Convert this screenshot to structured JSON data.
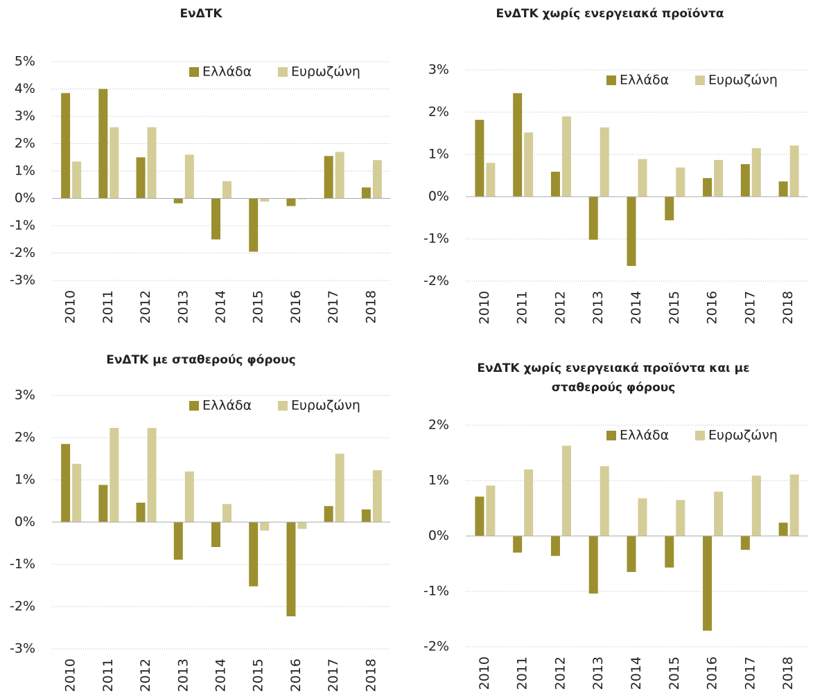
{
  "chart_data": [
    {
      "type": "bar",
      "title": "ΕνΔΤΚ",
      "categories": [
        "2010",
        "2011",
        "2012",
        "2013",
        "2014",
        "2015",
        "2016",
        "2017",
        "2018"
      ],
      "series": [
        {
          "name": "Ελλάδα",
          "color": "#9c8f2f",
          "values": [
            3.85,
            4.0,
            1.5,
            -0.18,
            -1.5,
            -1.95,
            -0.28,
            1.55,
            0.4
          ]
        },
        {
          "name": "Ευρωζώνη",
          "color": "#d5cd98",
          "values": [
            1.35,
            2.6,
            2.6,
            1.6,
            0.63,
            -0.12,
            -0.03,
            1.7,
            1.4
          ]
        }
      ],
      "ylim": [
        -3,
        5
      ],
      "yticks": [
        {
          "value": -3,
          "label": "-3%"
        },
        {
          "value": -2,
          "label": "-2%"
        },
        {
          "value": -1,
          "label": "-1%"
        },
        {
          "value": 0,
          "label": "0%"
        },
        {
          "value": 1,
          "label": "1%"
        },
        {
          "value": 2,
          "label": "2%"
        },
        {
          "value": 3,
          "label": "3%"
        },
        {
          "value": 4,
          "label": "4%"
        },
        {
          "value": 5,
          "label": "5%"
        }
      ],
      "grid": true,
      "legend": "upper right"
    },
    {
      "type": "bar",
      "title": "ΕνΔΤΚ χωρίς ενεργειακά προϊόντα",
      "categories": [
        "2010",
        "2011",
        "2012",
        "2013",
        "2014",
        "2015",
        "2016",
        "2017",
        "2018"
      ],
      "series": [
        {
          "name": "Ελλάδα",
          "color": "#9c8f2f",
          "values": [
            1.82,
            2.45,
            0.59,
            -1.02,
            -1.64,
            -0.56,
            0.44,
            0.77,
            0.36
          ]
        },
        {
          "name": "Ευρωζώνη",
          "color": "#d5cd98",
          "values": [
            0.8,
            1.52,
            1.9,
            1.64,
            0.89,
            0.69,
            0.87,
            1.15,
            1.21
          ]
        }
      ],
      "ylim": [
        -2,
        3
      ],
      "yticks": [
        {
          "value": -2,
          "label": "-2%"
        },
        {
          "value": -1,
          "label": "-1%"
        },
        {
          "value": 0,
          "label": "0%"
        },
        {
          "value": 1,
          "label": "1%"
        },
        {
          "value": 2,
          "label": "2%"
        },
        {
          "value": 3,
          "label": "3%"
        }
      ],
      "grid": true,
      "legend": "upper right"
    },
    {
      "type": "bar",
      "title": "ΕνΔΤΚ με σταθερούς φόρους",
      "categories": [
        "2010",
        "2011",
        "2012",
        "2013",
        "2014",
        "2015",
        "2016",
        "2017",
        "2018"
      ],
      "series": [
        {
          "name": "Ελλάδα",
          "color": "#9c8f2f",
          "values": [
            1.85,
            0.88,
            0.46,
            -0.89,
            -0.59,
            -1.52,
            -2.23,
            0.38,
            0.3
          ]
        },
        {
          "name": "Ευρωζώνη",
          "color": "#d5cd98",
          "values": [
            1.38,
            2.23,
            2.23,
            1.2,
            0.43,
            -0.2,
            -0.16,
            1.62,
            1.23
          ]
        }
      ],
      "ylim": [
        -3,
        3
      ],
      "yticks": [
        {
          "value": -3,
          "label": "-3%"
        },
        {
          "value": -2,
          "label": "-2%"
        },
        {
          "value": -1,
          "label": "-1%"
        },
        {
          "value": 0,
          "label": "0%"
        },
        {
          "value": 1,
          "label": "1%"
        },
        {
          "value": 2,
          "label": "2%"
        },
        {
          "value": 3,
          "label": "3%"
        }
      ],
      "grid": true,
      "legend": "upper right"
    },
    {
      "type": "bar",
      "title": "ΕνΔΤΚ χωρίς ενεργειακά προϊόντα και με σταθερούς φόρους",
      "categories": [
        "2010",
        "2011",
        "2012",
        "2013",
        "2014",
        "2015",
        "2016",
        "2017",
        "2018"
      ],
      "series": [
        {
          "name": "Ελλάδα",
          "color": "#9c8f2f",
          "values": [
            0.71,
            -0.3,
            -0.36,
            -1.04,
            -0.65,
            -0.57,
            -1.71,
            -0.25,
            0.24
          ]
        },
        {
          "name": "Ευρωζώνη",
          "color": "#d5cd98",
          "values": [
            0.91,
            1.2,
            1.63,
            1.26,
            0.68,
            0.65,
            0.8,
            1.09,
            1.11
          ]
        }
      ],
      "ylim": [
        -2,
        2
      ],
      "yticks": [
        {
          "value": -2,
          "label": "-2%"
        },
        {
          "value": -1,
          "label": "-1%"
        },
        {
          "value": 0,
          "label": "0%"
        },
        {
          "value": 1,
          "label": "1%"
        },
        {
          "value": 2,
          "label": "2%"
        }
      ],
      "grid": true,
      "legend": "upper right"
    }
  ]
}
